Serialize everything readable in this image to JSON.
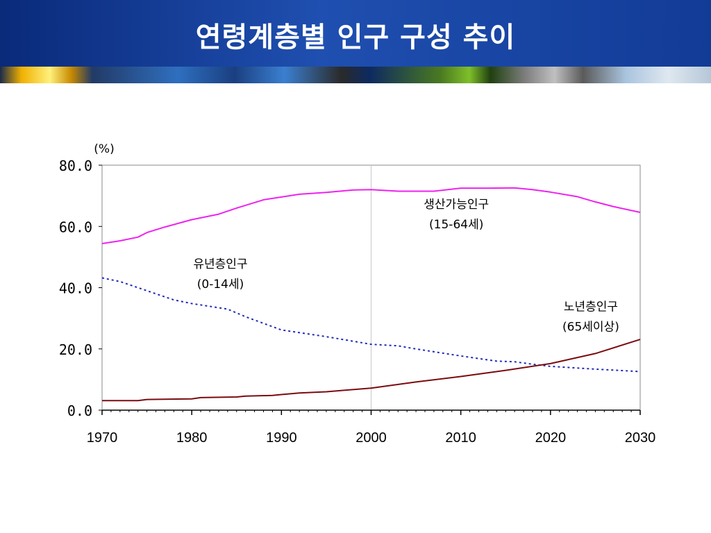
{
  "slide": {
    "title": "연령계층별 인구 구성 추이"
  },
  "chart_data": {
    "type": "line",
    "title": "",
    "xlabel": "",
    "ylabel": "(%)",
    "xlim": [
      1970,
      2030
    ],
    "ylim": [
      0,
      80
    ],
    "x_ticks": [
      1970,
      1980,
      1990,
      2000,
      2010,
      2020,
      2030
    ],
    "y_ticks": [
      "0.0",
      "20.0",
      "40.0",
      "60.0",
      "80.0"
    ],
    "reference_line_x": 2000,
    "grid": false,
    "legend": "none",
    "series": [
      {
        "label_lines": [
          "생산가능인구",
          "(15-64세)"
        ],
        "color": "#ee22ee",
        "style": "solid",
        "x": [
          1970,
          1972,
          1974,
          1975,
          1977,
          1980,
          1983,
          1985,
          1988,
          1990,
          1992,
          1995,
          1998,
          2000,
          2003,
          2007,
          2010,
          2013,
          2016,
          2018,
          2020,
          2023,
          2025,
          2027,
          2030
        ],
        "values": [
          54.4,
          55.3,
          56.5,
          58.0,
          59.8,
          62.2,
          64.0,
          66.0,
          68.7,
          69.6,
          70.5,
          71.1,
          71.9,
          72.0,
          71.5,
          71.5,
          72.5,
          72.5,
          72.6,
          72.0,
          71.2,
          69.7,
          68.0,
          66.5,
          64.6
        ]
      },
      {
        "label_lines": [
          "유년층인구",
          "(0-14세)"
        ],
        "color": "#1f2ab8",
        "style": "dotted",
        "x": [
          1970,
          1972,
          1975,
          1978,
          1980,
          1984,
          1986,
          1990,
          1995,
          2000,
          2003,
          2005,
          2010,
          2014,
          2016,
          2018,
          2020,
          2025,
          2030
        ],
        "values": [
          43.2,
          42.0,
          39.0,
          36.0,
          34.8,
          33.0,
          30.5,
          26.2,
          24.0,
          21.5,
          21.0,
          20.0,
          17.7,
          16.0,
          15.8,
          15.0,
          14.3,
          13.4,
          12.6
        ]
      },
      {
        "label_lines": [
          "노년층인구",
          "(65세이상)"
        ],
        "color": "#7a0b10",
        "style": "solid",
        "x": [
          1970,
          1974,
          1975,
          1980,
          1981,
          1985,
          1986,
          1989,
          1990,
          1992,
          1995,
          2000,
          2005,
          2010,
          2015,
          2020,
          2025,
          2030
        ],
        "values": [
          3.1,
          3.1,
          3.5,
          3.7,
          4.1,
          4.3,
          4.6,
          4.8,
          5.1,
          5.6,
          6.0,
          7.2,
          9.2,
          11.0,
          13.0,
          15.2,
          18.5,
          23.1
        ]
      }
    ]
  }
}
